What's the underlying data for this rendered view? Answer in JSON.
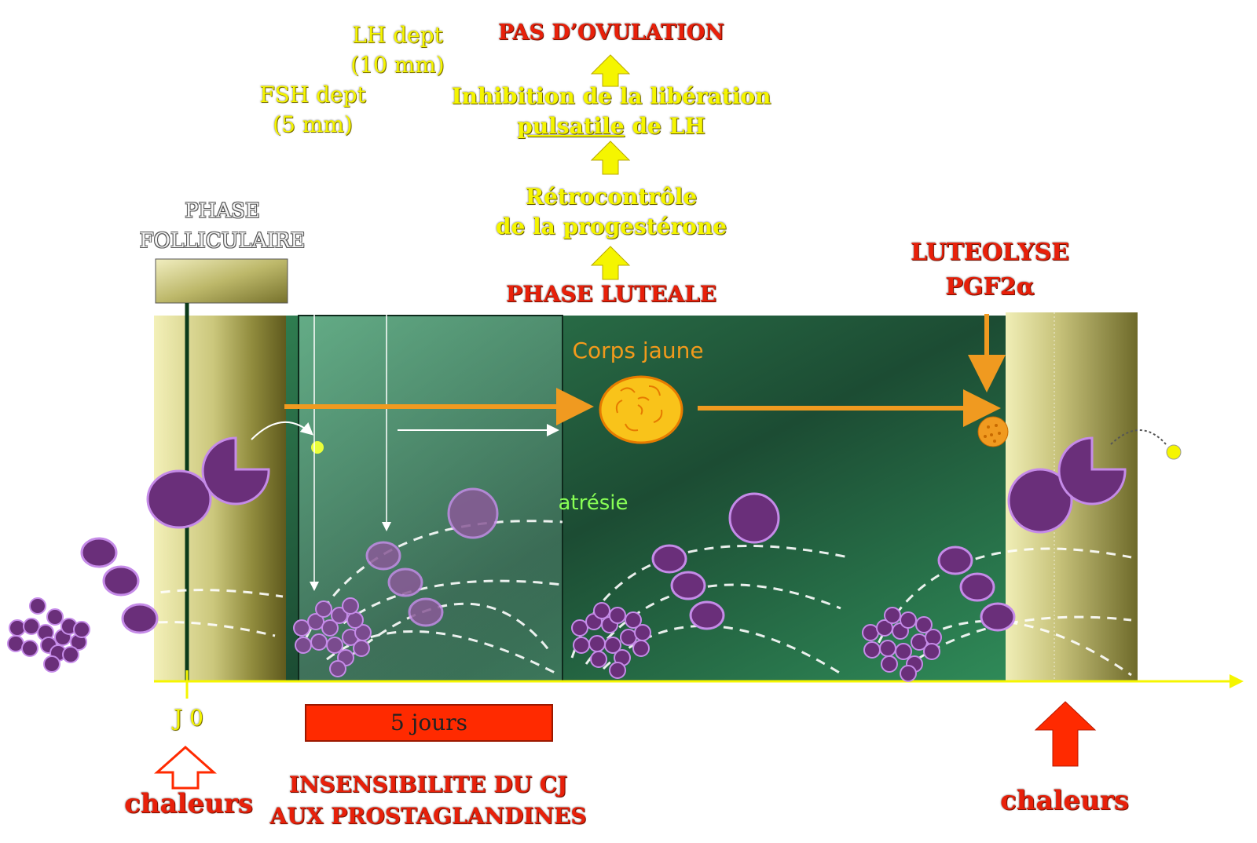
{
  "labels": {
    "lh_dept_1": "LH dept",
    "lh_dept_2": "(10 mm)",
    "fsh_dept_1": "FSH dept",
    "fsh_dept_2": "(5 mm)",
    "pas_ovulation": "PAS D’OVULATION",
    "inhibition_1": "Inhibition de  la libération",
    "inhibition_2a": "pulsatile",
    "inhibition_2b": " de LH",
    "retro_1": "Rétrocontrôle",
    "retro_2": "de la progestérone",
    "phase_luteale": "PHASE LUTEALE",
    "phase_folliculaire_1": "PHASE",
    "phase_folliculaire_2": "FOLLICULAIRE",
    "luteolyse_1": "LUTEOLYSE",
    "luteolyse_2": "PGF2α",
    "corps_jaune": "Corps jaune",
    "atresie": "atrésie",
    "j0": "J 0",
    "five_days": "5 jours",
    "chaleurs_left": "chaleurs",
    "chaleurs_right": "chaleurs",
    "insensibilite_1": "INSENSIBILITE DU CJ",
    "insensibilite_2": "AUX PROSTAGLANDINES"
  },
  "colors": {
    "bg_green_light": "#4f9e70",
    "bg_green_dark": "#1c4a32",
    "follicle": "#6a2f7a",
    "follicle_edge": "#c58be8",
    "gold": "#d8d488",
    "arrow_orange": "#f09a20",
    "arrow_yellow": "#f5f500",
    "arrow_red": "#ff2a00"
  }
}
